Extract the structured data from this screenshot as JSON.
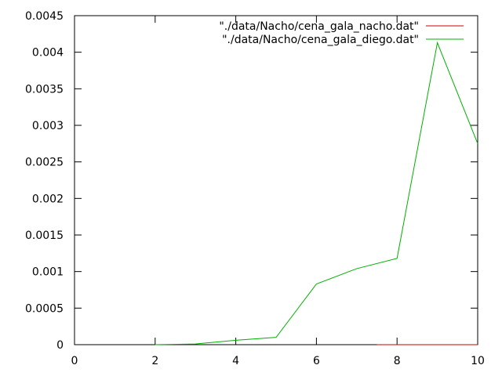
{
  "chart_data": {
    "type": "line",
    "title": "",
    "xlabel": "",
    "ylabel": "",
    "xlim": [
      0,
      10
    ],
    "ylim": [
      0,
      0.0045
    ],
    "grid": false,
    "legend_position": "top-right",
    "x_ticks": [
      "0",
      "2",
      "4",
      "6",
      "8",
      "10"
    ],
    "y_ticks": [
      "0",
      "0.0005",
      "0.001",
      "0.0015",
      "0.002",
      "0.0025",
      "0.003",
      "0.0035",
      "0.004",
      "0.0045"
    ],
    "series": [
      {
        "name": "\"./data/Nacho/cena_gala_nacho.dat\"",
        "color": "#cc0000",
        "x": [
          7.5,
          8,
          9,
          10
        ],
        "y": [
          0,
          0,
          0,
          0
        ]
      },
      {
        "name": "\"./data/Nacho/cena_gala_diego.dat\"",
        "color": "#00b000",
        "x": [
          2,
          3,
          4,
          5,
          6,
          7,
          8,
          9,
          10
        ],
        "y": [
          5e-07,
          1e-05,
          6e-05,
          0.0001,
          0.00083,
          0.00104,
          0.00118,
          0.00413,
          0.00275
        ]
      }
    ]
  }
}
